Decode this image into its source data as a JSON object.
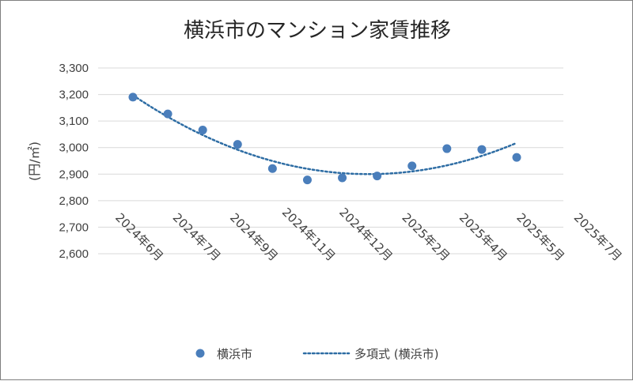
{
  "chart_data": {
    "type": "scatter",
    "title": "横浜市のマンション家賃推移",
    "ylabel": "(円/㎡)",
    "xlabel": "",
    "ylim": [
      2600,
      3300
    ],
    "ytick_step": 100,
    "ytick_labels": [
      "2,600",
      "2,700",
      "2,800",
      "2,900",
      "3,000",
      "3,100",
      "3,200",
      "3,300"
    ],
    "xtick_labels": [
      "2024年6月",
      "2024年7月",
      "2024年9月",
      "2024年11月",
      "2024年12月",
      "2025年2月",
      "2025年4月",
      "2025年5月",
      "2025年7月"
    ],
    "grid": true,
    "legend_position": "bottom",
    "series": [
      {
        "name": "横浜市",
        "kind": "markers",
        "color": "#4a7ebb",
        "values": [
          3190,
          3127,
          3066,
          3012,
          2921,
          2878,
          2886,
          2893,
          2931,
          2996,
          2993,
          2963
        ]
      }
    ],
    "trendline": {
      "name": "多項式 (横浜市)",
      "kind": "polynomial",
      "order": 2,
      "style": "dotted",
      "color": "#2e6da4"
    }
  }
}
